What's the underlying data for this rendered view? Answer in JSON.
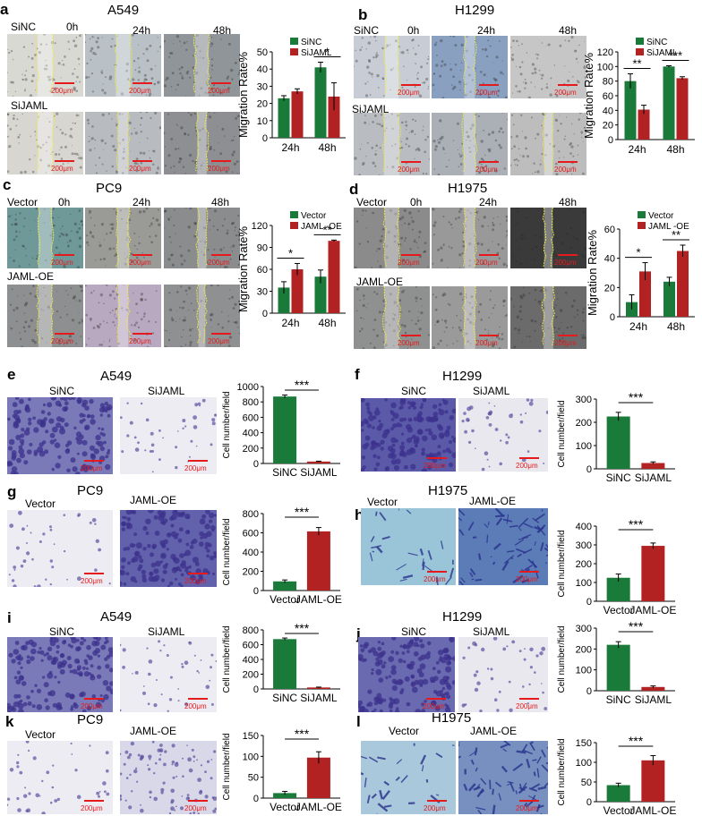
{
  "panels": [
    {
      "id": "a",
      "label": "a",
      "title": "A549",
      "row1": "SiNC",
      "row2": "SiJAML",
      "times": [
        "0h",
        "24h",
        "48h"
      ]
    },
    {
      "id": "b",
      "label": "b",
      "title": "H1299",
      "row1": "SiNC",
      "row2": "SiJAML",
      "times": [
        "0h",
        "24h",
        "48h"
      ]
    },
    {
      "id": "c",
      "label": "c",
      "title": "PC9",
      "row1": "Vector",
      "row2": "JAML-OE",
      "times": [
        "0h",
        "24h",
        "48h"
      ]
    },
    {
      "id": "d",
      "label": "d",
      "title": "H1975",
      "row1": "Vector",
      "row2": "JAML-OE",
      "times": [
        "0h",
        "24h",
        "48h"
      ]
    },
    {
      "id": "e",
      "label": "e",
      "title": "A549",
      "img1": "SiNC",
      "img2": "SiJAML"
    },
    {
      "id": "f",
      "label": "f",
      "title": "H1299",
      "img1": "SiNC",
      "img2": "SiJAML"
    },
    {
      "id": "g",
      "label": "g",
      "title": "PC9",
      "img1": "Vector",
      "img2": "JAML-OE"
    },
    {
      "id": "h",
      "label": "h",
      "title": "H1975",
      "img1": "Vector",
      "img2": "JAML-OE"
    },
    {
      "id": "i",
      "label": "i",
      "title": "A549",
      "img1": "SiNC",
      "img2": "SiJAML"
    },
    {
      "id": "j",
      "label": "j",
      "title": "H1299",
      "img1": "SiNC",
      "img2": "SiJAML"
    },
    {
      "id": "k",
      "label": "k",
      "title": "PC9",
      "img1": "Vector",
      "img2": "JAML-OE"
    },
    {
      "id": "l",
      "label": "l",
      "title": "H1975",
      "img1": "Vector",
      "img2": "JAML-OE"
    }
  ],
  "scale_bar": "200μm",
  "colors": {
    "green": "#1a7a3a",
    "red": "#b22222"
  },
  "chart_data": [
    {
      "id": "a",
      "type": "bar",
      "ylabel": "Migration Rate%",
      "ylim": [
        0,
        50
      ],
      "yticks": [
        0,
        10,
        20,
        30,
        40,
        50
      ],
      "categories": [
        "24h",
        "48h"
      ],
      "series": [
        {
          "name": "SiNC",
          "values": [
            23,
            41
          ],
          "errors": [
            1.5,
            3
          ]
        },
        {
          "name": "SiJAML",
          "values": [
            27,
            24
          ],
          "errors": [
            1.5,
            8
          ]
        }
      ],
      "significance": [
        {
          "category": "48h",
          "text": "*"
        }
      ],
      "legend": "top"
    },
    {
      "id": "b",
      "type": "bar",
      "ylabel": "Migration Rate%",
      "ylim": [
        0,
        120
      ],
      "yticks": [
        0,
        20,
        40,
        60,
        80,
        100,
        120
      ],
      "categories": [
        "24h",
        "48h"
      ],
      "series": [
        {
          "name": "SiNC",
          "values": [
            80,
            100
          ],
          "errors": [
            10,
            1
          ]
        },
        {
          "name": "SiJAML",
          "values": [
            41,
            84
          ],
          "errors": [
            6,
            2
          ]
        }
      ],
      "significance": [
        {
          "category": "24h",
          "text": "**"
        },
        {
          "category": "48h",
          "text": "***"
        }
      ],
      "legend": "top"
    },
    {
      "id": "c",
      "type": "bar",
      "ylabel": "Migration Rate%",
      "ylim": [
        0,
        120
      ],
      "yticks": [
        0,
        30,
        60,
        90,
        120
      ],
      "categories": [
        "24h",
        "48h"
      ],
      "series": [
        {
          "name": "Vector",
          "values": [
            35,
            50
          ],
          "errors": [
            8,
            9
          ]
        },
        {
          "name": "JAML -OE",
          "values": [
            60,
            99
          ],
          "errors": [
            8,
            1
          ]
        }
      ],
      "significance": [
        {
          "category": "24h",
          "text": "*"
        },
        {
          "category": "48h",
          "text": "**"
        }
      ],
      "legend": "top"
    },
    {
      "id": "d",
      "type": "bar",
      "ylabel": "Migration Rate%",
      "ylim": [
        0,
        60
      ],
      "yticks": [
        0,
        20,
        40,
        60
      ],
      "categories": [
        "24h",
        "48h"
      ],
      "series": [
        {
          "name": "Vector",
          "values": [
            10,
            24
          ],
          "errors": [
            5,
            3
          ]
        },
        {
          "name": "JAML -OE",
          "values": [
            31,
            45
          ],
          "errors": [
            6,
            4
          ]
        }
      ],
      "significance": [
        {
          "category": "24h",
          "text": "*"
        },
        {
          "category": "48h",
          "text": "**"
        }
      ],
      "legend": "top"
    },
    {
      "id": "e",
      "type": "bar",
      "ylabel": "Cell number/field",
      "ylim": [
        0,
        1000
      ],
      "yticks": [
        0,
        200,
        400,
        600,
        800,
        1000
      ],
      "categories": [
        "SiNC",
        "SiJAML"
      ],
      "values": [
        870,
        25
      ],
      "errors": [
        20,
        5
      ],
      "significance": "***"
    },
    {
      "id": "f",
      "type": "bar",
      "ylabel": "Cell number/field",
      "ylim": [
        0,
        300
      ],
      "yticks": [
        0,
        100,
        200,
        300
      ],
      "categories": [
        "SiNC",
        "SiJAML"
      ],
      "values": [
        225,
        25
      ],
      "errors": [
        18,
        5
      ],
      "significance": "***"
    },
    {
      "id": "g",
      "type": "bar",
      "ylabel": "Cell number/field",
      "ylim": [
        0,
        800
      ],
      "yticks": [
        0,
        200,
        400,
        600,
        800
      ],
      "categories": [
        "Vector",
        "JAML-OE"
      ],
      "values": [
        95,
        615
      ],
      "errors": [
        15,
        40
      ],
      "significance": "***"
    },
    {
      "id": "h",
      "type": "bar",
      "ylabel": "Cell number/field",
      "ylim": [
        0,
        400
      ],
      "yticks": [
        0,
        100,
        200,
        300,
        400
      ],
      "categories": [
        "Vector",
        "JAML-OE"
      ],
      "values": [
        125,
        295
      ],
      "errors": [
        20,
        15
      ],
      "significance": "***"
    },
    {
      "id": "i",
      "type": "bar",
      "ylabel": "Cell number/field",
      "ylim": [
        0,
        800
      ],
      "yticks": [
        0,
        200,
        400,
        600,
        800
      ],
      "categories": [
        "SiNC",
        "SiJAML"
      ],
      "values": [
        675,
        20
      ],
      "errors": [
        15,
        5
      ],
      "significance": "***"
    },
    {
      "id": "j",
      "type": "bar",
      "ylabel": "Cell number/field",
      "ylim": [
        0,
        300
      ],
      "yticks": [
        0,
        100,
        200,
        300
      ],
      "categories": [
        "SiNC",
        "SiJAML"
      ],
      "values": [
        220,
        18
      ],
      "errors": [
        15,
        5
      ],
      "significance": "***"
    },
    {
      "id": "k",
      "type": "bar",
      "ylabel": "Cell number/field",
      "ylim": [
        0,
        150
      ],
      "yticks": [
        0,
        50,
        100,
        150
      ],
      "categories": [
        "Vector",
        "JAML-OE"
      ],
      "values": [
        12,
        97
      ],
      "errors": [
        4,
        14
      ],
      "significance": "***"
    },
    {
      "id": "l",
      "type": "bar",
      "ylabel": "Cell number/field",
      "ylim": [
        0,
        150
      ],
      "yticks": [
        0,
        50,
        100,
        150
      ],
      "categories": [
        "Vector",
        "JAML-OE"
      ],
      "values": [
        42,
        105
      ],
      "errors": [
        5,
        12
      ],
      "significance": "***"
    }
  ]
}
